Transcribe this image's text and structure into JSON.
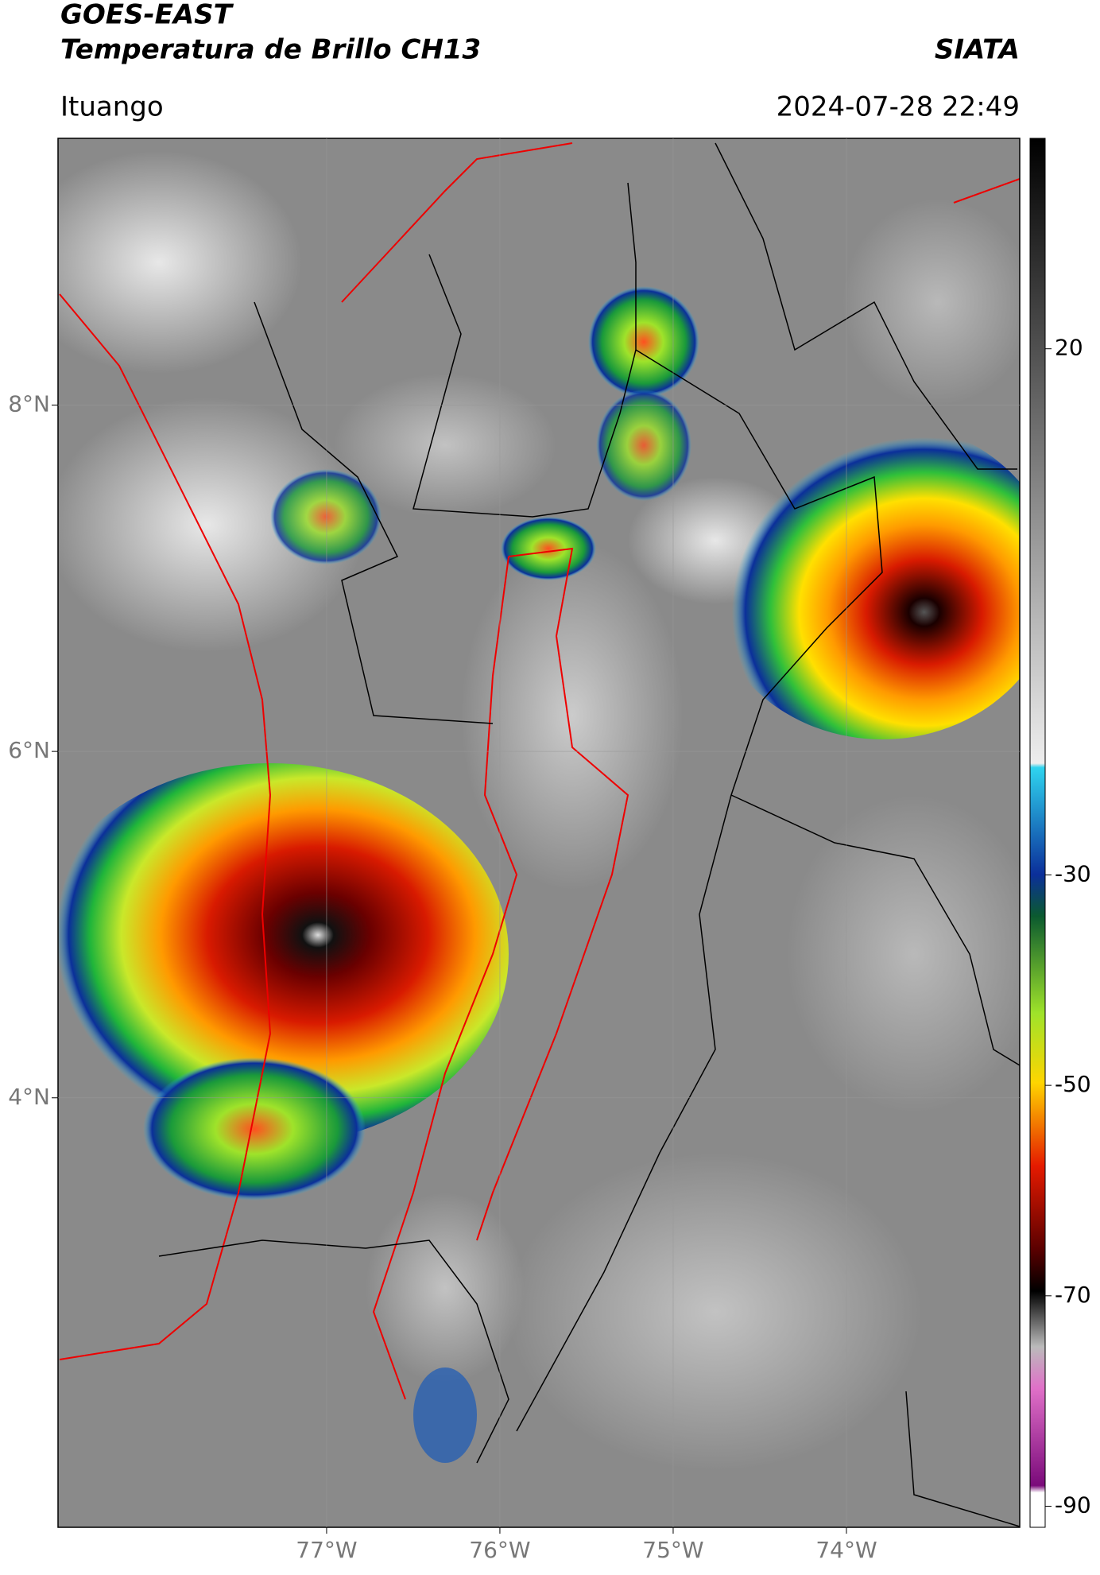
{
  "header": {
    "title_line1": "GOES-EAST",
    "title_line2": "Temperatura de Brillo CH13",
    "source": "SIATA",
    "location": "Ituango",
    "timestamp": "2024-07-28 22:49"
  },
  "map": {
    "lonlim": [
      -78.55,
      -73.0
    ],
    "latlim": [
      1.52,
      9.54
    ],
    "lon_ticks": [
      {
        "value": -77,
        "label": "77°W"
      },
      {
        "value": -76,
        "label": "76°W"
      },
      {
        "value": -75,
        "label": "75°W"
      },
      {
        "value": -74,
        "label": "74°W"
      }
    ],
    "lat_ticks": [
      {
        "value": 8,
        "label": "8°N"
      },
      {
        "value": 6,
        "label": "6°N"
      },
      {
        "value": 4,
        "label": "4°N"
      }
    ],
    "grid": true
  },
  "colorbar": {
    "lim": [
      -92,
      40
    ],
    "ticks": [
      20,
      -30,
      -50,
      -70,
      -90
    ]
  }
}
